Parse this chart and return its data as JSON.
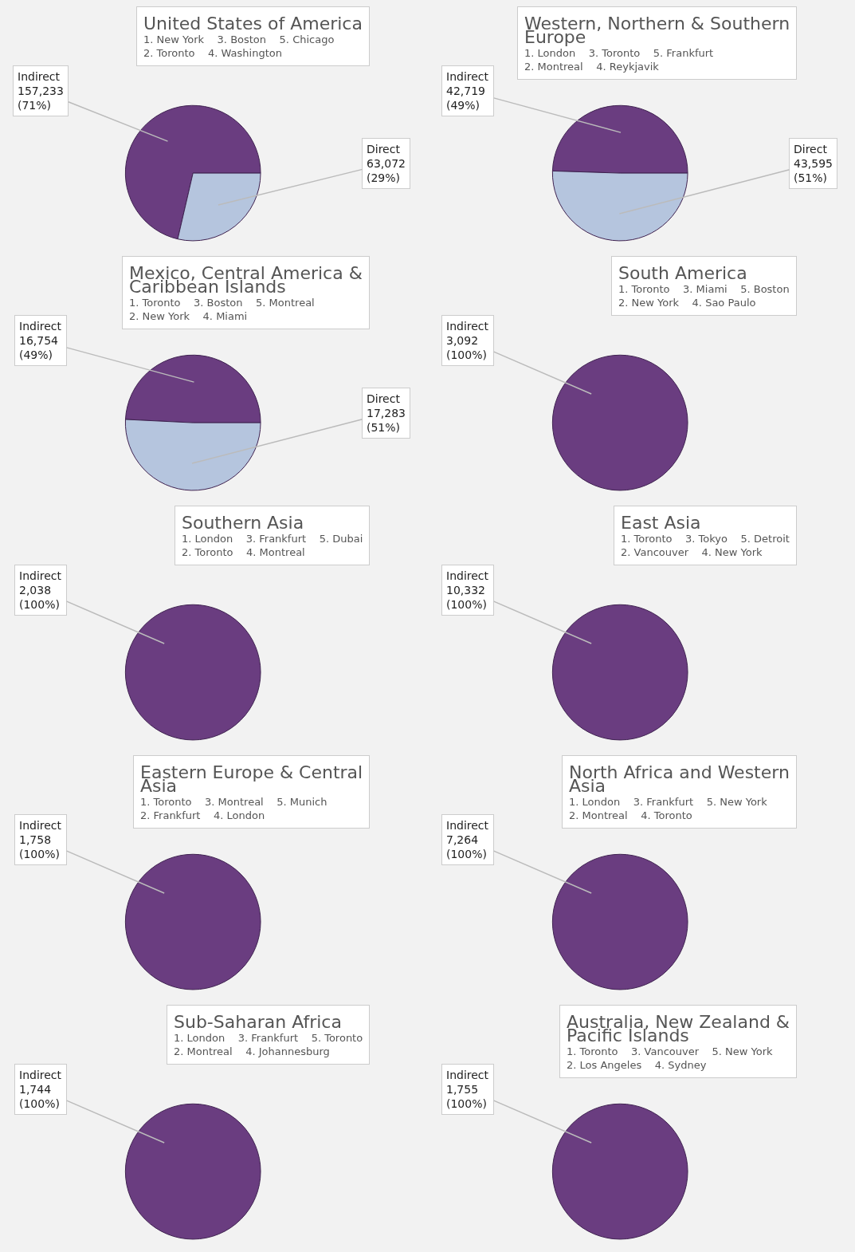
{
  "chart_data": [
    {
      "type": "pie",
      "title": "United States of America",
      "categories": [
        "Indirect",
        "Direct"
      ],
      "values": [
        157233,
        63072
      ],
      "colors": [
        "#6a3d80",
        "#b5c5de"
      ],
      "value_labels": [
        "157,233\n(71%)",
        "63,072\n(29%)"
      ],
      "annotations": [
        "1. New York",
        "2. Toronto",
        "3. Boston",
        "4. Washington",
        "5. Chicago"
      ]
    },
    {
      "type": "pie",
      "title": "Western, Northern & Southern Europe",
      "categories": [
        "Indirect",
        "Direct"
      ],
      "values": [
        42719,
        43595
      ],
      "colors": [
        "#6a3d80",
        "#b5c5de"
      ],
      "value_labels": [
        "42,719\n(49%)",
        "43,595\n(51%)"
      ],
      "annotations": [
        "1. London",
        "2. Montreal",
        "3. Toronto",
        "4. Reykjavik",
        "5. Frankfurt"
      ]
    },
    {
      "type": "pie",
      "title": "Mexico, Central America & Caribbean Islands",
      "categories": [
        "Indirect",
        "Direct"
      ],
      "values": [
        16754,
        17283
      ],
      "colors": [
        "#6a3d80",
        "#b5c5de"
      ],
      "value_labels": [
        "16,754\n(49%)",
        "17,283\n(51%)"
      ],
      "annotations": [
        "1. Toronto",
        "2. New York",
        "3. Boston",
        "4. Miami",
        "5. Montreal"
      ]
    },
    {
      "type": "pie",
      "title": "South America",
      "categories": [
        "Indirect"
      ],
      "values": [
        3092
      ],
      "colors": [
        "#6a3d80"
      ],
      "value_labels": [
        "3,092\n(100%)"
      ],
      "annotations": [
        "1. Toronto",
        "2. New York",
        "3. Miami",
        "4. Sao Paulo",
        "5. Boston"
      ]
    },
    {
      "type": "pie",
      "title": "Southern Asia",
      "categories": [
        "Indirect"
      ],
      "values": [
        2038
      ],
      "colors": [
        "#6a3d80"
      ],
      "value_labels": [
        "2,038\n(100%)"
      ],
      "annotations": [
        "1. London",
        "2. Toronto",
        "3. Frankfurt",
        "4. Montreal",
        "5. Dubai"
      ]
    },
    {
      "type": "pie",
      "title": "East Asia",
      "categories": [
        "Indirect"
      ],
      "values": [
        10332
      ],
      "colors": [
        "#6a3d80"
      ],
      "value_labels": [
        "10,332\n(100%)"
      ],
      "annotations": [
        "1. Toronto",
        "2. Vancouver",
        "3. Tokyo",
        "4. New York",
        "5. Detroit"
      ]
    },
    {
      "type": "pie",
      "title": "Eastern Europe & Central Asia",
      "categories": [
        "Indirect"
      ],
      "values": [
        1758
      ],
      "colors": [
        "#6a3d80"
      ],
      "value_labels": [
        "1,758\n(100%)"
      ],
      "annotations": [
        "1. Toronto",
        "2. Frankfurt",
        "3. Montreal",
        "4. London",
        "5. Munich"
      ]
    },
    {
      "type": "pie",
      "title": "North Africa and Western Asia",
      "categories": [
        "Indirect"
      ],
      "values": [
        7264
      ],
      "colors": [
        "#6a3d80"
      ],
      "value_labels": [
        "7,264\n(100%)"
      ],
      "annotations": [
        "1. London",
        "2. Montreal",
        "3. Frankfurt",
        "4. Toronto",
        "5. New York"
      ]
    },
    {
      "type": "pie",
      "title": "Sub-Saharan Africa",
      "categories": [
        "Indirect"
      ],
      "values": [
        1744
      ],
      "colors": [
        "#6a3d80"
      ],
      "value_labels": [
        "1,744\n(100%)"
      ],
      "annotations": [
        "1. London",
        "2. Montreal",
        "3. Frankfurt",
        "4. Johannesburg",
        "5. Toronto"
      ]
    },
    {
      "type": "pie",
      "title": "Australia, New Zealand & Pacific Islands",
      "categories": [
        "Indirect"
      ],
      "values": [
        1755
      ],
      "colors": [
        "#6a3d80"
      ],
      "value_labels": [
        "1,755\n(100%)"
      ],
      "annotations": [
        "1. Toronto",
        "2. Los Angeles",
        "3. Vancouver",
        "4. Sydney",
        "5. New York"
      ]
    }
  ]
}
